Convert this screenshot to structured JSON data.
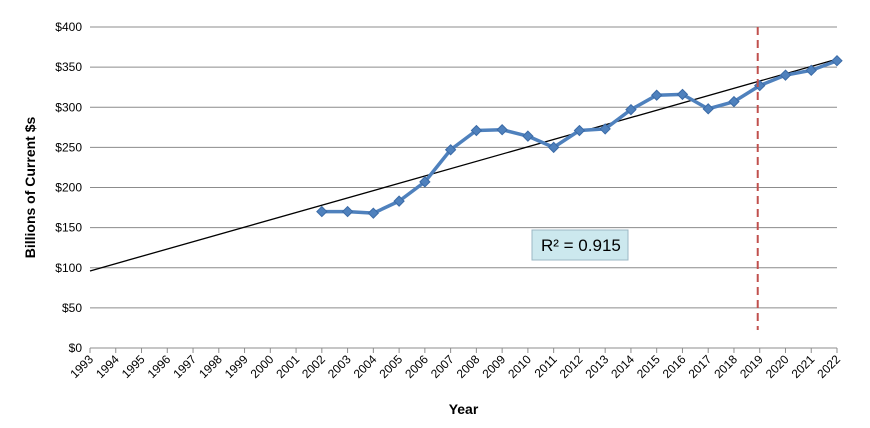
{
  "chart_data": {
    "type": "line",
    "xlabel": "Year",
    "ylabel": "Billions of Current $s",
    "ylim": [
      0,
      400
    ],
    "y_ticks": [
      0,
      50,
      100,
      150,
      200,
      250,
      300,
      350,
      400
    ],
    "y_tick_labels": [
      "$0",
      "$50",
      "$100",
      "$150",
      "$200",
      "$250",
      "$300",
      "$350",
      "$400"
    ],
    "x_categories": [
      "1993",
      "1994",
      "1995",
      "1996",
      "1997",
      "1998",
      "1999",
      "2000",
      "2001",
      "2002",
      "2003",
      "2004",
      "2005",
      "2006",
      "2007",
      "2008",
      "2009",
      "2010",
      "2011",
      "2012",
      "2013",
      "2014",
      "2015",
      "2016",
      "2017",
      "2018",
      "2019",
      "2020",
      "2021",
      "2022"
    ],
    "grid": "horizontal",
    "series": [
      {
        "x": [
          "2002",
          "2003",
          "2004",
          "2005",
          "2006",
          "2007",
          "2008",
          "2009",
          "2010",
          "2011",
          "2012",
          "2013",
          "2014",
          "2015",
          "2016",
          "2017",
          "2018",
          "2019",
          "2020",
          "2021",
          "2022"
        ],
        "values": [
          170,
          170,
          168,
          183,
          207,
          247,
          271,
          272,
          264,
          250,
          271,
          273,
          297,
          315,
          316,
          298,
          307,
          327,
          340,
          346,
          358
        ],
        "color": "#4f81bd"
      }
    ],
    "trendline": {
      "type": "linear",
      "from": {
        "x": "1993",
        "y": 96
      },
      "to": {
        "x": "2022",
        "y": 360
      },
      "color": "#000000"
    },
    "annotation": {
      "text": "R² = 0.915"
    },
    "vertical_marker": {
      "x": "2019",
      "style": "dashed",
      "color": "#c0504d"
    }
  }
}
